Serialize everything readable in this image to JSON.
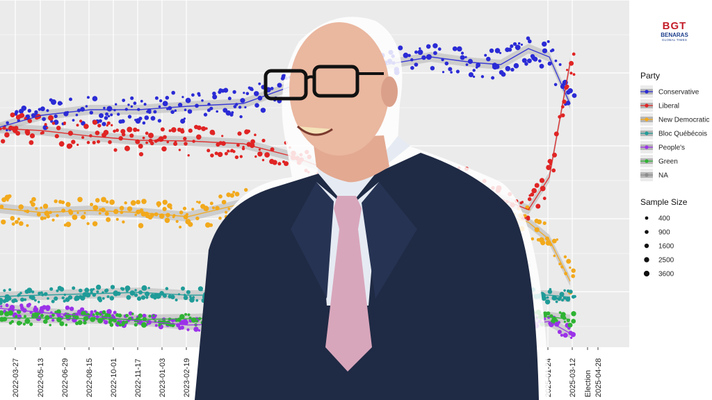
{
  "logo": {
    "mark": "BGT",
    "name": "BENARAS",
    "tagline": "GLOBAL TIMES"
  },
  "photo": {
    "subject": "man in dark suit and glasses"
  },
  "colors": {
    "panel": "#ebebeb",
    "grid": "#ffffff",
    "ribbon": "#b5b5b5"
  },
  "chart_data": {
    "type": "scatter",
    "x_tick_labels": [
      "2022-03-27",
      "2022-05-13",
      "2022-06-29",
      "2022-08-15",
      "2022-10-01",
      "2022-11-17",
      "2023-01-03",
      "2023-02-19",
      "2025-01-24",
      "2025-03-12",
      "Election",
      "2025-04-28"
    ],
    "legend_titles": {
      "party": "Party",
      "sample_size": "Sample Size"
    },
    "series": [
      {
        "name": "Conservative",
        "color": "#2b2bd6",
        "values": [
          [
            0,
            183
          ],
          [
            60,
            166
          ],
          [
            130,
            158
          ],
          [
            200,
            158
          ],
          [
            270,
            153
          ],
          [
            350,
            149
          ],
          [
            420,
            124
          ],
          [
            480,
            114
          ],
          [
            560,
            92
          ],
          [
            620,
            82
          ],
          [
            680,
            90
          ],
          [
            720,
            93
          ],
          [
            760,
            70
          ],
          [
            790,
            82
          ],
          [
            820,
            150
          ]
        ]
      },
      {
        "name": "Liberal",
        "color": "#e02424",
        "values": [
          [
            0,
            185
          ],
          [
            60,
            188
          ],
          [
            130,
            196
          ],
          [
            200,
            202
          ],
          [
            270,
            203
          ],
          [
            350,
            207
          ],
          [
            420,
            225
          ],
          [
            480,
            247
          ],
          [
            560,
            252
          ],
          [
            620,
            258
          ],
          [
            680,
            265
          ],
          [
            720,
            286
          ],
          [
            760,
            302
          ],
          [
            790,
            255
          ],
          [
            820,
            90
          ]
        ]
      },
      {
        "name": "New Democratic",
        "color": "#f2a91c",
        "values": [
          [
            0,
            300
          ],
          [
            60,
            306
          ],
          [
            130,
            303
          ],
          [
            200,
            306
          ],
          [
            270,
            312
          ],
          [
            350,
            293
          ],
          [
            420,
            300
          ],
          [
            480,
            305
          ],
          [
            560,
            305
          ],
          [
            620,
            305
          ],
          [
            680,
            305
          ],
          [
            720,
            308
          ],
          [
            760,
            320
          ],
          [
            790,
            345
          ],
          [
            820,
            405
          ]
        ]
      },
      {
        "name": "Bloc Québécois",
        "color": "#1f9b98",
        "values": [
          [
            0,
            427
          ],
          [
            60,
            425
          ],
          [
            130,
            423
          ],
          [
            200,
            421
          ],
          [
            270,
            425
          ],
          [
            350,
            425
          ],
          [
            420,
            425
          ],
          [
            480,
            426
          ],
          [
            560,
            426
          ],
          [
            620,
            426
          ],
          [
            680,
            427
          ],
          [
            720,
            429
          ],
          [
            760,
            425
          ],
          [
            790,
            425
          ],
          [
            820,
            428
          ]
        ]
      },
      {
        "name": "People's",
        "color": "#9b32e8",
        "values": [
          [
            0,
            444
          ],
          [
            60,
            450
          ],
          [
            130,
            455
          ],
          [
            200,
            462
          ],
          [
            270,
            468
          ],
          [
            350,
            466
          ],
          [
            420,
            466
          ],
          [
            480,
            467
          ],
          [
            560,
            466
          ],
          [
            620,
            466
          ],
          [
            680,
            466
          ],
          [
            720,
            466
          ],
          [
            760,
            466
          ],
          [
            790,
            463
          ],
          [
            820,
            480
          ]
        ]
      },
      {
        "name": "Green",
        "color": "#2fb334",
        "values": [
          [
            0,
            458
          ],
          [
            60,
            458
          ],
          [
            130,
            459
          ],
          [
            200,
            460
          ],
          [
            270,
            459
          ],
          [
            350,
            457
          ],
          [
            420,
            458
          ],
          [
            480,
            458
          ],
          [
            560,
            458
          ],
          [
            620,
            458
          ],
          [
            680,
            458
          ],
          [
            720,
            458
          ],
          [
            760,
            458
          ],
          [
            790,
            456
          ],
          [
            820,
            460
          ]
        ]
      },
      {
        "name": "NA",
        "color": "#8c8c8c",
        "values": []
      }
    ],
    "sample_size_legend": [
      400,
      900,
      1600,
      2500,
      3600
    ],
    "grid": true,
    "legend_position": "right"
  }
}
